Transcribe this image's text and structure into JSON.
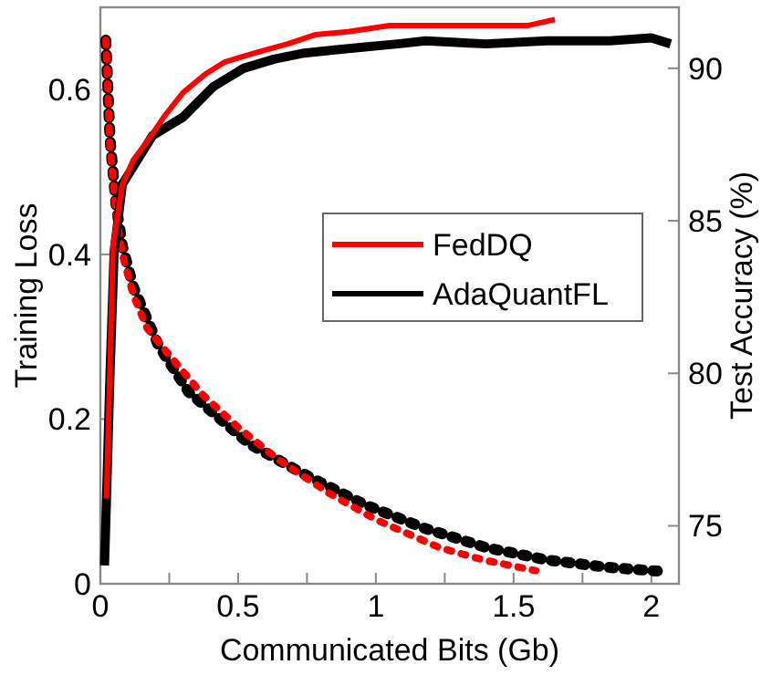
{
  "chart_data": {
    "type": "line",
    "xlabel": "Communicated  Bits (Gb)",
    "ylabel": "Training  Loss",
    "y2label": "Test Accuracy (%)",
    "xlim": [
      0,
      2.1
    ],
    "xticks": [
      0,
      {
        "value": 0.25,
        "label": null
      },
      0.5,
      {
        "value": 0.75,
        "label": null
      },
      1,
      {
        "value": 1.25,
        "label": null
      },
      1.5,
      {
        "value": 1.75,
        "label": null
      },
      2
    ],
    "ylim": [
      0,
      0.7
    ],
    "yticks": [
      0,
      0.2,
      0.4,
      0.6
    ],
    "y2lim": [
      73.1,
      92
    ],
    "y2ticks": [
      75,
      80,
      85,
      90
    ],
    "legend": "right",
    "grid": false,
    "series": [
      {
        "name": "FedDQ",
        "color": "#ff0000",
        "axis": "y2",
        "line_style": "solid",
        "x": [
          0.022,
          0.035,
          0.046,
          0.08,
          0.12,
          0.17,
          0.23,
          0.3,
          0.38,
          0.45,
          0.56,
          0.68,
          0.78,
          0.9,
          1.05,
          1.2,
          1.41,
          1.55,
          1.65
        ],
        "values": [
          75.9,
          80.3,
          84.2,
          86.2,
          87.0,
          87.6,
          88.4,
          89.2,
          89.8,
          90.2,
          90.5,
          90.8,
          91.1,
          91.2,
          91.4,
          91.4,
          91.4,
          91.4,
          91.6
        ]
      },
      {
        "name": "AdaQuantFL",
        "color": "#000000",
        "axis": "y2",
        "line_style": "solid",
        "x": [
          0.015,
          0.022,
          0.035,
          0.05,
          0.08,
          0.19,
          0.3,
          0.41,
          0.52,
          0.63,
          0.74,
          0.85,
          0.96,
          1.08,
          1.18,
          1.4,
          1.62,
          1.85,
          2.0,
          2.07
        ],
        "values": [
          73.7,
          75.8,
          80.0,
          84.0,
          86.2,
          87.8,
          88.4,
          89.4,
          90.0,
          90.3,
          90.5,
          90.6,
          90.7,
          90.8,
          90.9,
          90.8,
          90.9,
          90.9,
          91.0,
          90.8
        ]
      },
      {
        "color": "#ff0000",
        "axis": "y",
        "line_style": "dotted",
        "x": [
          0.02,
          0.035,
          0.057,
          0.08,
          0.12,
          0.17,
          0.22,
          0.37,
          0.5,
          0.65,
          0.83,
          1.0,
          1.23,
          1.39,
          1.58
        ],
        "values": [
          0.66,
          0.53,
          0.45,
          0.4,
          0.35,
          0.31,
          0.29,
          0.23,
          0.19,
          0.15,
          0.11,
          0.078,
          0.044,
          0.029,
          0.016
        ]
      },
      {
        "color": "#000000",
        "axis": "y",
        "line_style": "dotted",
        "x": [
          0.02,
          0.035,
          0.057,
          0.08,
          0.12,
          0.21,
          0.32,
          0.54,
          0.74,
          0.96,
          1.18,
          1.4,
          1.62,
          1.84,
          2.04
        ],
        "values": [
          0.66,
          0.54,
          0.46,
          0.41,
          0.36,
          0.29,
          0.233,
          0.17,
          0.133,
          0.096,
          0.067,
          0.044,
          0.029,
          0.02,
          0.015
        ]
      }
    ]
  }
}
